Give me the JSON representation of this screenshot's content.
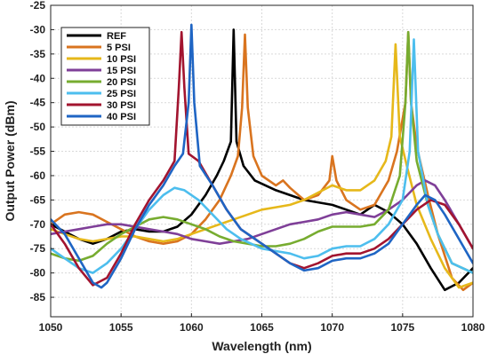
{
  "chart_data": {
    "type": "line",
    "title": "",
    "xlabel": "Wavelength (nm)",
    "ylabel": "Output Power (dBm)",
    "xlim": [
      1050,
      1080
    ],
    "ylim": [
      -89,
      -25
    ],
    "xticks": [
      1050,
      1055,
      1060,
      1065,
      1070,
      1075,
      1080
    ],
    "yticks": [
      -85,
      -80,
      -75,
      -70,
      -65,
      -60,
      -55,
      -50,
      -45,
      -40,
      -35,
      -30,
      -25
    ],
    "grid": true,
    "legend_position": "top-left",
    "series": [
      {
        "name": "REF",
        "color": "#000000",
        "points": [
          [
            1050,
            -70
          ],
          [
            1051,
            -71.5
          ],
          [
            1052,
            -73
          ],
          [
            1053,
            -74
          ],
          [
            1054,
            -73
          ],
          [
            1055,
            -71.5
          ],
          [
            1056,
            -71
          ],
          [
            1057,
            -71.5
          ],
          [
            1058,
            -71.5
          ],
          [
            1059,
            -70.5
          ],
          [
            1060,
            -68
          ],
          [
            1061,
            -64
          ],
          [
            1061.8,
            -60
          ],
          [
            1062.3,
            -57
          ],
          [
            1062.8,
            -53
          ],
          [
            1063,
            -30
          ],
          [
            1063.2,
            -53
          ],
          [
            1063.7,
            -58
          ],
          [
            1064.5,
            -61
          ],
          [
            1066,
            -63
          ],
          [
            1068,
            -65
          ],
          [
            1070,
            -66
          ],
          [
            1072,
            -68
          ],
          [
            1073,
            -66
          ],
          [
            1074,
            -67.5
          ],
          [
            1075,
            -70
          ],
          [
            1076,
            -74
          ],
          [
            1077,
            -79
          ],
          [
            1078,
            -83.5
          ],
          [
            1079,
            -82
          ],
          [
            1080,
            -79
          ]
        ]
      },
      {
        "name": "5 PSI",
        "color": "#d9741f",
        "points": [
          [
            1050,
            -70
          ],
          [
            1051,
            -68
          ],
          [
            1052,
            -67.5
          ],
          [
            1053,
            -68
          ],
          [
            1054,
            -69.5
          ],
          [
            1055,
            -71
          ],
          [
            1056,
            -72.5
          ],
          [
            1057,
            -73.5
          ],
          [
            1058,
            -74
          ],
          [
            1059,
            -73.5
          ],
          [
            1060,
            -72
          ],
          [
            1061,
            -69
          ],
          [
            1062,
            -65
          ],
          [
            1062.8,
            -60
          ],
          [
            1063.3,
            -56
          ],
          [
            1063.6,
            -46
          ],
          [
            1063.8,
            -31
          ],
          [
            1064,
            -46
          ],
          [
            1064.4,
            -56
          ],
          [
            1065,
            -60
          ],
          [
            1066,
            -62
          ],
          [
            1066.5,
            -61
          ],
          [
            1067,
            -62.5
          ],
          [
            1068,
            -65
          ],
          [
            1069,
            -64
          ],
          [
            1069.8,
            -61
          ],
          [
            1070,
            -56
          ],
          [
            1070.3,
            -61
          ],
          [
            1071,
            -65
          ],
          [
            1072,
            -67
          ],
          [
            1073,
            -66
          ],
          [
            1074,
            -61
          ],
          [
            1074.6,
            -55
          ],
          [
            1075.2,
            -45
          ],
          [
            1075.4,
            -30.5
          ],
          [
            1075.6,
            -45
          ],
          [
            1076,
            -54
          ],
          [
            1076.8,
            -64
          ],
          [
            1077.5,
            -72
          ],
          [
            1078.5,
            -81
          ],
          [
            1079.3,
            -83.5
          ],
          [
            1080,
            -82
          ]
        ]
      },
      {
        "name": "10 PSI",
        "color": "#e6b81a",
        "points": [
          [
            1050,
            -71
          ],
          [
            1051,
            -72
          ],
          [
            1052,
            -73
          ],
          [
            1053,
            -73.5
          ],
          [
            1054,
            -73
          ],
          [
            1055,
            -72.5
          ],
          [
            1056,
            -72.5
          ],
          [
            1057,
            -73
          ],
          [
            1058,
            -73.5
          ],
          [
            1059,
            -73
          ],
          [
            1060,
            -72
          ],
          [
            1061,
            -71
          ],
          [
            1062,
            -70
          ],
          [
            1063,
            -69
          ],
          [
            1064,
            -68
          ],
          [
            1065,
            -67
          ],
          [
            1066,
            -66.5
          ],
          [
            1067,
            -66
          ],
          [
            1068,
            -65
          ],
          [
            1069,
            -63.5
          ],
          [
            1070,
            -62
          ],
          [
            1071,
            -63
          ],
          [
            1072,
            -63
          ],
          [
            1073,
            -61
          ],
          [
            1073.8,
            -57
          ],
          [
            1074.2,
            -52
          ],
          [
            1074.5,
            -33
          ],
          [
            1074.8,
            -52
          ],
          [
            1075.3,
            -58
          ],
          [
            1076,
            -66
          ],
          [
            1077,
            -73
          ],
          [
            1078,
            -79
          ],
          [
            1079,
            -83
          ],
          [
            1080,
            -82
          ]
        ]
      },
      {
        "name": "15 PSI",
        "color": "#7f3f98",
        "points": [
          [
            1050,
            -72
          ],
          [
            1051,
            -71.5
          ],
          [
            1052,
            -71
          ],
          [
            1053,
            -70.5
          ],
          [
            1054,
            -70
          ],
          [
            1055,
            -70
          ],
          [
            1056,
            -70.5
          ],
          [
            1057,
            -71
          ],
          [
            1058,
            -71.5
          ],
          [
            1059,
            -72
          ],
          [
            1060,
            -73
          ],
          [
            1061,
            -73.5
          ],
          [
            1062,
            -74
          ],
          [
            1063,
            -73.5
          ],
          [
            1064,
            -73
          ],
          [
            1065,
            -72
          ],
          [
            1066,
            -71
          ],
          [
            1067,
            -70
          ],
          [
            1068,
            -69.5
          ],
          [
            1069,
            -69
          ],
          [
            1070,
            -68
          ],
          [
            1071,
            -67.5
          ],
          [
            1072,
            -68
          ],
          [
            1073,
            -68.5
          ],
          [
            1074,
            -67
          ],
          [
            1075,
            -65
          ],
          [
            1076,
            -62
          ],
          [
            1076.6,
            -61
          ],
          [
            1077.3,
            -62
          ],
          [
            1078,
            -65
          ],
          [
            1079,
            -70
          ],
          [
            1080,
            -75
          ]
        ]
      },
      {
        "name": "20 PSI",
        "color": "#77ac30",
        "points": [
          [
            1050,
            -76
          ],
          [
            1051,
            -77
          ],
          [
            1052,
            -77.5
          ],
          [
            1053,
            -76.5
          ],
          [
            1054,
            -74
          ],
          [
            1055,
            -72
          ],
          [
            1056,
            -70.5
          ],
          [
            1057,
            -69
          ],
          [
            1058,
            -68.5
          ],
          [
            1059,
            -69
          ],
          [
            1060,
            -70
          ],
          [
            1061,
            -71
          ],
          [
            1062,
            -72.5
          ],
          [
            1063,
            -73.5
          ],
          [
            1064,
            -74
          ],
          [
            1065,
            -74.5
          ],
          [
            1066,
            -74.5
          ],
          [
            1067,
            -74
          ],
          [
            1068,
            -73
          ],
          [
            1069,
            -71.5
          ],
          [
            1070,
            -70.5
          ],
          [
            1071,
            -70.5
          ],
          [
            1072,
            -70.5
          ],
          [
            1073,
            -70
          ],
          [
            1074,
            -67
          ],
          [
            1074.8,
            -60
          ],
          [
            1075.2,
            -45
          ],
          [
            1075.4,
            -30.5
          ],
          [
            1075.6,
            -45
          ],
          [
            1076,
            -57
          ],
          [
            1076.8,
            -66
          ],
          [
            1077.5,
            -72
          ],
          [
            1078.5,
            -78
          ],
          [
            1080,
            -80
          ]
        ]
      },
      {
        "name": "25 PSI",
        "color": "#4dbeee",
        "points": [
          [
            1050,
            -75
          ],
          [
            1051,
            -77
          ],
          [
            1052,
            -79
          ],
          [
            1053,
            -80
          ],
          [
            1054,
            -78
          ],
          [
            1055,
            -75
          ],
          [
            1056,
            -71
          ],
          [
            1057,
            -67
          ],
          [
            1058,
            -64
          ],
          [
            1058.8,
            -62.5
          ],
          [
            1059.5,
            -63
          ],
          [
            1060.5,
            -65
          ],
          [
            1061.5,
            -68
          ],
          [
            1062.5,
            -71
          ],
          [
            1063.5,
            -73
          ],
          [
            1065,
            -75
          ],
          [
            1066,
            -75.5
          ],
          [
            1067,
            -76
          ],
          [
            1068,
            -77
          ],
          [
            1069,
            -76.5
          ],
          [
            1070,
            -75
          ],
          [
            1071,
            -74.5
          ],
          [
            1072,
            -74.5
          ],
          [
            1073,
            -73
          ],
          [
            1074,
            -70
          ],
          [
            1075,
            -65
          ],
          [
            1075.5,
            -55
          ],
          [
            1075.8,
            -32
          ],
          [
            1076.1,
            -55
          ],
          [
            1076.8,
            -66
          ],
          [
            1077.5,
            -72
          ],
          [
            1078.5,
            -78
          ],
          [
            1080,
            -80
          ]
        ]
      },
      {
        "name": "30 PSI",
        "color": "#a2142f",
        "points": [
          [
            1050,
            -70
          ],
          [
            1051,
            -74
          ],
          [
            1052,
            -79
          ],
          [
            1053,
            -82.5
          ],
          [
            1054,
            -81
          ],
          [
            1055,
            -76
          ],
          [
            1056,
            -70
          ],
          [
            1057,
            -65
          ],
          [
            1058,
            -61
          ],
          [
            1058.8,
            -57
          ],
          [
            1059.1,
            -42
          ],
          [
            1059.3,
            -30.5
          ],
          [
            1059.5,
            -42
          ],
          [
            1059.8,
            -55.5
          ],
          [
            1060.5,
            -57
          ],
          [
            1061.5,
            -62
          ],
          [
            1062.5,
            -67
          ],
          [
            1063.5,
            -71
          ],
          [
            1065,
            -74
          ],
          [
            1066,
            -76
          ],
          [
            1067,
            -78
          ],
          [
            1068,
            -79
          ],
          [
            1069,
            -78
          ],
          [
            1070,
            -76.5
          ],
          [
            1071,
            -76
          ],
          [
            1072,
            -76
          ],
          [
            1073,
            -75
          ],
          [
            1074,
            -73
          ],
          [
            1075,
            -70
          ],
          [
            1076,
            -67
          ],
          [
            1077,
            -65
          ],
          [
            1078,
            -66
          ],
          [
            1079,
            -70
          ],
          [
            1080,
            -75
          ]
        ]
      },
      {
        "name": "40 PSI",
        "color": "#1f65c4",
        "points": [
          [
            1050,
            -69
          ],
          [
            1051,
            -72
          ],
          [
            1052,
            -77
          ],
          [
            1053,
            -82
          ],
          [
            1053.6,
            -83
          ],
          [
            1054,
            -82
          ],
          [
            1055,
            -77
          ],
          [
            1056,
            -71
          ],
          [
            1057,
            -66
          ],
          [
            1058,
            -62
          ],
          [
            1058.8,
            -58
          ],
          [
            1059.4,
            -55.5
          ],
          [
            1059.8,
            -45
          ],
          [
            1060,
            -29
          ],
          [
            1060.2,
            -45
          ],
          [
            1060.6,
            -58
          ],
          [
            1061.5,
            -62
          ],
          [
            1062.5,
            -67
          ],
          [
            1063.5,
            -71
          ],
          [
            1065,
            -74
          ],
          [
            1066,
            -76
          ],
          [
            1067,
            -78
          ],
          [
            1068,
            -79.5
          ],
          [
            1069,
            -79
          ],
          [
            1070,
            -77.5
          ],
          [
            1071,
            -77
          ],
          [
            1072,
            -77
          ],
          [
            1073,
            -76
          ],
          [
            1074,
            -74
          ],
          [
            1075,
            -70
          ],
          [
            1076,
            -66
          ],
          [
            1076.6,
            -64
          ],
          [
            1077.3,
            -65
          ],
          [
            1078,
            -68
          ],
          [
            1079,
            -73
          ],
          [
            1080,
            -78
          ]
        ]
      }
    ]
  }
}
